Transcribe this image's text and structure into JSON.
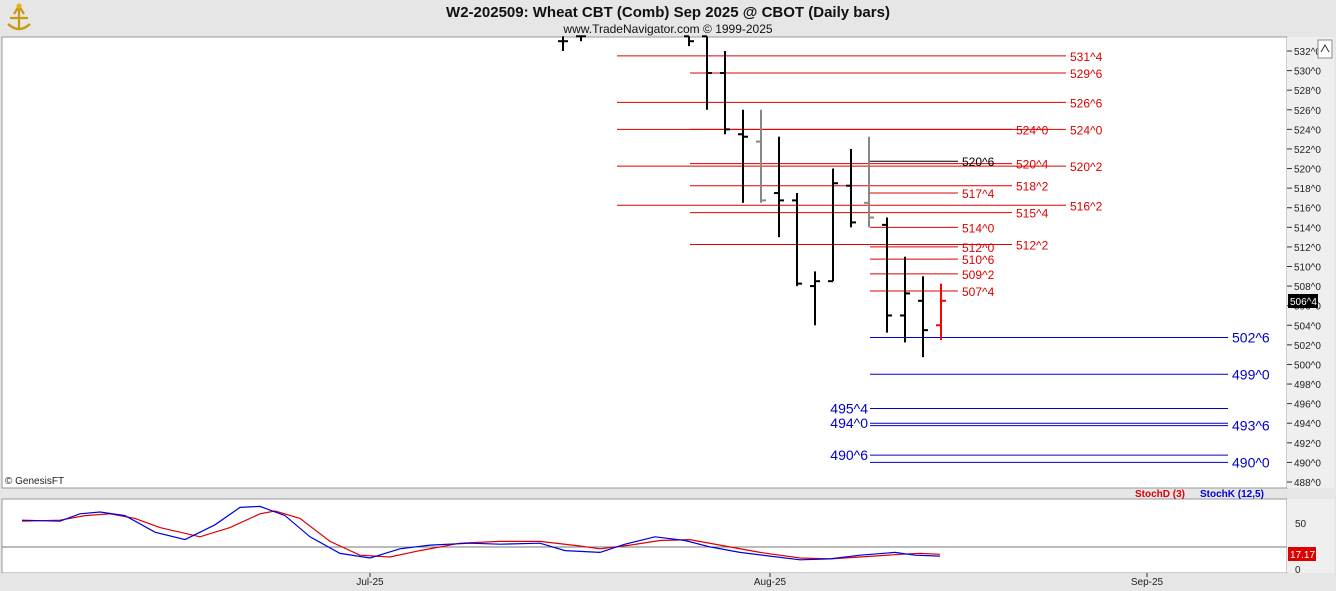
{
  "header": {
    "title": "W2-202509:  Wheat CBT (Comb) Sep 2025 @ CBOT  (Daily bars)",
    "subtitle": "www.TradeNavigator.com © 1999-2025",
    "copyright": "© GenesisFT",
    "logo_icon": "trade-navigator-logo-icon"
  },
  "colors": {
    "background": "#ffffff",
    "frame": "#e6e6e6",
    "red_level": "#dd0000",
    "blue_level": "#0000cc",
    "bar_black": "#000000",
    "bar_gray": "#888888",
    "bar_red": "#ff0000",
    "stoch_d": "#dd0000",
    "stoch_k": "#0000dd",
    "price_tag_bg": "#000000",
    "stoch_tag_bg": "#dd0000"
  },
  "chart_data": [
    {
      "type": "ohlc",
      "title": "W2-202509:  Wheat CBT (Comb) Sep 2025 @ CBOT  (Daily bars)",
      "price_unit": "cents (x^eighths)",
      "ylim": [
        487.5,
        533.5
      ],
      "y_ticks": [
        "532^0",
        "530^0",
        "528^0",
        "526^0",
        "524^0",
        "522^0",
        "520^0",
        "518^0",
        "516^0",
        "514^0",
        "512^0",
        "510^0",
        "508^0",
        "506^0",
        "504^0",
        "502^0",
        "500^0",
        "498^0",
        "496^0",
        "494^0",
        "492^0",
        "490^0",
        "488^0"
      ],
      "x_ticks": [
        "Jul-25",
        "Aug-25",
        "Sep-25"
      ],
      "last_price_label": "506^4",
      "bars": [
        {
          "o": 533.0,
          "h": 533.5,
          "l": 532.0,
          "c": 533.0,
          "color": "black"
        },
        {
          "o": 533.5,
          "h": 533.5,
          "l": 533.0,
          "c": 533.5,
          "color": "black"
        },
        {
          "o": 533.5,
          "h": 533.5,
          "l": 532.5,
          "c": 533.0,
          "color": "black"
        },
        {
          "o": 533.5,
          "h": 533.5,
          "l": 526.0,
          "c": 529.75,
          "color": "black"
        },
        {
          "o": 529.75,
          "h": 532.0,
          "l": 523.5,
          "c": 524.0,
          "color": "black"
        },
        {
          "o": 523.5,
          "h": 526.0,
          "l": 516.5,
          "c": 523.25,
          "color": "black"
        },
        {
          "o": 522.75,
          "h": 526.0,
          "l": 516.5,
          "c": 516.75,
          "color": "gray"
        },
        {
          "o": 517.5,
          "h": 523.25,
          "l": 513.0,
          "c": 516.75,
          "color": "black"
        },
        {
          "o": 516.75,
          "h": 517.5,
          "l": 508.0,
          "c": 508.25,
          "color": "black"
        },
        {
          "o": 508.0,
          "h": 509.5,
          "l": 504.0,
          "c": 508.5,
          "color": "black"
        },
        {
          "o": 508.5,
          "h": 520.0,
          "l": 508.5,
          "c": 518.5,
          "color": "black"
        },
        {
          "o": 518.25,
          "h": 522.0,
          "l": 514.0,
          "c": 514.5,
          "color": "black"
        },
        {
          "o": 516.5,
          "h": 523.25,
          "l": 514.0,
          "c": 515.0,
          "color": "gray"
        },
        {
          "o": 514.25,
          "h": 515.0,
          "l": 503.25,
          "c": 505.0,
          "color": "black"
        },
        {
          "o": 505.0,
          "h": 511.0,
          "l": 502.25,
          "c": 507.25,
          "color": "black"
        },
        {
          "o": 506.5,
          "h": 509.0,
          "l": 500.75,
          "c": 503.5,
          "color": "black"
        },
        {
          "o": 504.0,
          "h": 508.25,
          "l": 502.5,
          "c": 506.5,
          "color": "red"
        }
      ],
      "levels": [
        {
          "label": "531^4",
          "value": 531.5,
          "color": "red",
          "from": 617,
          "side": "right"
        },
        {
          "label": "529^6",
          "value": 529.75,
          "color": "red",
          "from": 690,
          "side": "right"
        },
        {
          "label": "526^6",
          "value": 526.75,
          "color": "red",
          "from": 617,
          "side": "right"
        },
        {
          "label": "524^0",
          "value": 524.0,
          "color": "red",
          "from": 617,
          "side": "right"
        },
        {
          "label": "520^2",
          "value": 520.25,
          "color": "red",
          "from": 617,
          "side": "right"
        },
        {
          "label": "516^2",
          "value": 516.25,
          "color": "red",
          "from": 617,
          "side": "right"
        },
        {
          "label": "524^0",
          "value": 524.0,
          "color": "red",
          "from": 690,
          "side": "mid"
        },
        {
          "label": "520^4",
          "value": 520.5,
          "color": "red",
          "from": 690,
          "side": "mid"
        },
        {
          "label": "518^2",
          "value": 518.25,
          "color": "red",
          "from": 690,
          "side": "mid"
        },
        {
          "label": "515^4",
          "value": 515.5,
          "color": "red",
          "from": 690,
          "side": "mid"
        },
        {
          "label": "512^2",
          "value": 512.25,
          "color": "red",
          "from": 690,
          "side": "mid"
        },
        {
          "label": "520^6",
          "value": 520.75,
          "color": "black",
          "from": 870,
          "side": "near"
        },
        {
          "label": "517^4",
          "value": 517.5,
          "color": "red",
          "from": 870,
          "side": "near"
        },
        {
          "label": "514^0",
          "value": 514.0,
          "color": "red",
          "from": 870,
          "side": "near"
        },
        {
          "label": "512^0",
          "value": 512.0,
          "color": "red",
          "from": 870,
          "side": "near"
        },
        {
          "label": "510^6",
          "value": 510.75,
          "color": "red",
          "from": 870,
          "side": "near"
        },
        {
          "label": "509^2",
          "value": 509.25,
          "color": "red",
          "from": 870,
          "side": "near"
        },
        {
          "label": "507^4",
          "value": 507.5,
          "color": "red",
          "from": 870,
          "side": "near"
        },
        {
          "label": "502^6",
          "value": 502.75,
          "color": "blue",
          "from": 870,
          "side": "blue-right"
        },
        {
          "label": "499^0",
          "value": 499.0,
          "color": "blue",
          "from": 870,
          "side": "blue-right"
        },
        {
          "label": "495^4",
          "value": 495.5,
          "color": "blue",
          "from": 870,
          "side": "blue-left"
        },
        {
          "label": "494^0",
          "value": 494.0,
          "color": "blue",
          "from": 870,
          "side": "blue-left"
        },
        {
          "label": "493^6",
          "value": 493.75,
          "color": "blue",
          "from": 870,
          "side": "blue-right"
        },
        {
          "label": "490^6",
          "value": 490.75,
          "color": "blue",
          "from": 870,
          "side": "blue-left"
        },
        {
          "label": "490^0",
          "value": 490.0,
          "color": "blue",
          "from": 870,
          "side": "blue-right"
        }
      ]
    },
    {
      "type": "line",
      "title": "",
      "ylim": [
        0,
        100
      ],
      "y_ticks": [
        "50",
        "0"
      ],
      "last_value_label": "17.17",
      "series": [
        {
          "name": "StochD (3)",
          "color": "red",
          "points": [
            [
              22,
              52
            ],
            [
              60,
              53
            ],
            [
              85,
              58
            ],
            [
              110,
              60
            ],
            [
              135,
              55
            ],
            [
              160,
              45
            ],
            [
              200,
              35
            ],
            [
              230,
              45
            ],
            [
              260,
              60
            ],
            [
              275,
              63
            ],
            [
              300,
              55
            ],
            [
              330,
              30
            ],
            [
              360,
              15
            ],
            [
              390,
              13
            ],
            [
              420,
              20
            ],
            [
              460,
              28
            ],
            [
              500,
              30
            ],
            [
              540,
              30
            ],
            [
              580,
              25
            ],
            [
              600,
              22
            ],
            [
              630,
              26
            ],
            [
              660,
              31
            ],
            [
              690,
              32
            ],
            [
              720,
              26
            ],
            [
              760,
              18
            ],
            [
              800,
              12
            ],
            [
              830,
              11
            ],
            [
              860,
              13
            ],
            [
              900,
              16
            ],
            [
              920,
              17
            ],
            [
              940,
              16
            ]
          ]
        },
        {
          "name": "StochK (12,5)",
          "color": "blue",
          "points": [
            [
              22,
              53
            ],
            [
              60,
              52
            ],
            [
              80,
              60
            ],
            [
              100,
              62
            ],
            [
              125,
              58
            ],
            [
              155,
              40
            ],
            [
              185,
              32
            ],
            [
              215,
              48
            ],
            [
              240,
              67
            ],
            [
              260,
              68
            ],
            [
              285,
              58
            ],
            [
              310,
              35
            ],
            [
              340,
              17
            ],
            [
              370,
              12
            ],
            [
              400,
              22
            ],
            [
              430,
              26
            ],
            [
              470,
              28
            ],
            [
              500,
              27
            ],
            [
              540,
              28
            ],
            [
              565,
              20
            ],
            [
              600,
              18
            ],
            [
              625,
              27
            ],
            [
              655,
              35
            ],
            [
              685,
              31
            ],
            [
              710,
              24
            ],
            [
              740,
              18
            ],
            [
              770,
              14
            ],
            [
              800,
              10
            ],
            [
              830,
              11
            ],
            [
              860,
              15
            ],
            [
              895,
              18
            ],
            [
              915,
              15
            ],
            [
              940,
              14
            ]
          ]
        }
      ]
    }
  ]
}
